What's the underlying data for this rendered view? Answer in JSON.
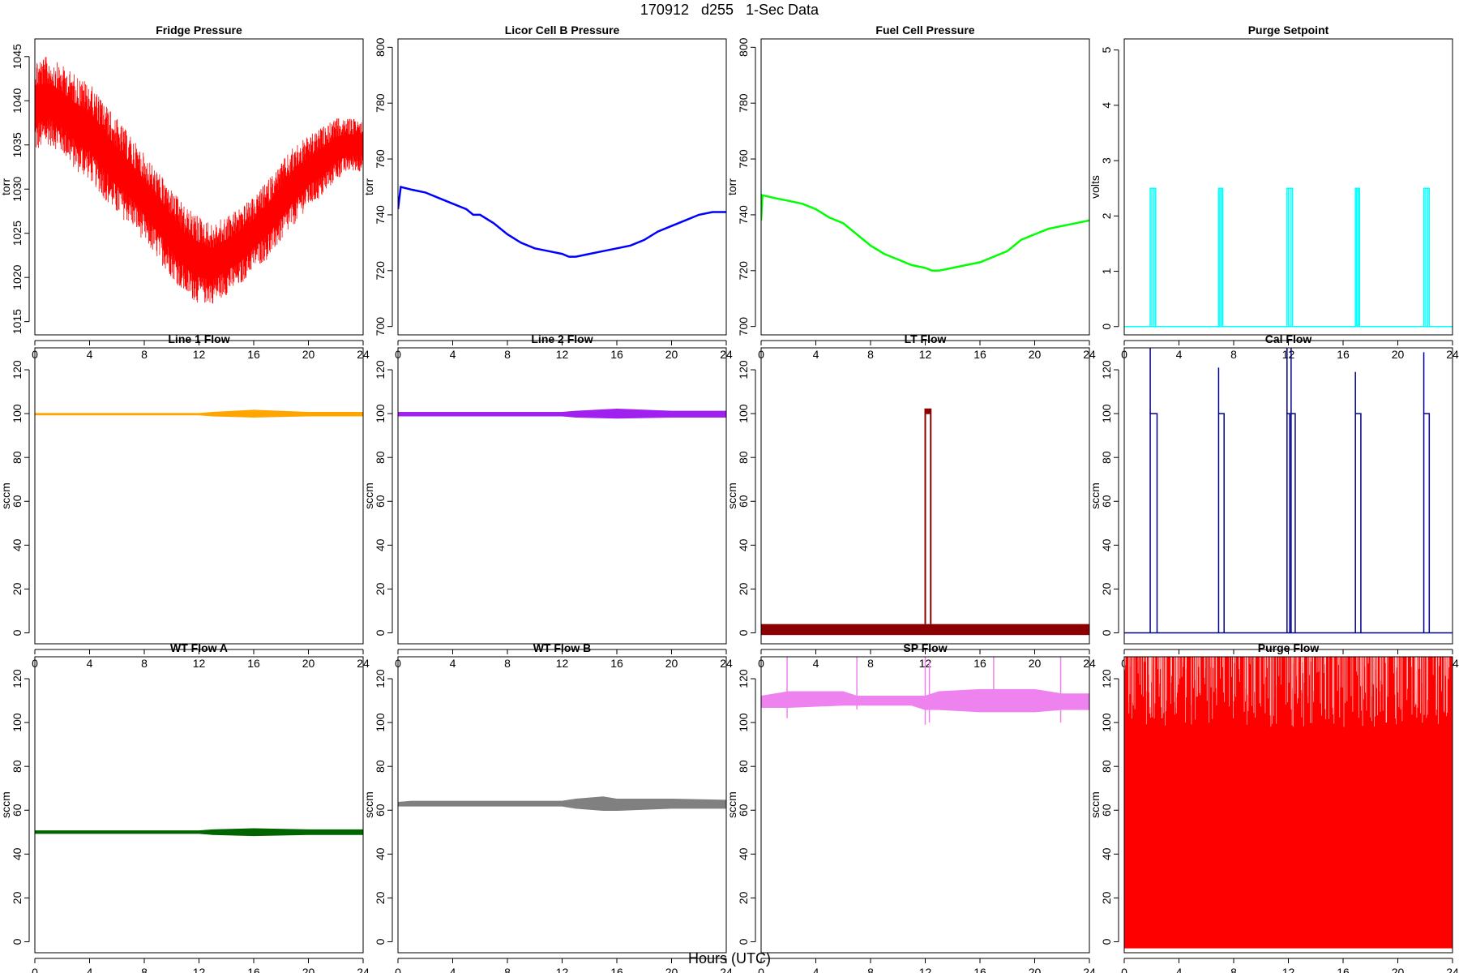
{
  "title": "170912   d255   1-Sec Data",
  "xlabel": "Hours (UTC)",
  "chart_data": [
    {
      "type": "line",
      "title": "Fridge Pressure",
      "ylabel": "torr",
      "color": "#ff0000",
      "style": "noise",
      "xlim": [
        0,
        24
      ],
      "ylim": [
        1013.5,
        1047
      ],
      "xticks": [
        0,
        4,
        8,
        12,
        16,
        20,
        24
      ],
      "yticks": [
        1015,
        1020,
        1025,
        1030,
        1035,
        1040,
        1045
      ],
      "x": [
        0,
        1,
        2,
        3,
        4,
        5,
        6,
        7,
        8,
        9,
        10,
        11,
        12,
        13,
        14,
        15,
        16,
        17,
        18,
        19,
        20,
        21,
        22,
        23,
        24
      ],
      "lower": [
        1034,
        1035,
        1034,
        1032,
        1031,
        1029,
        1027,
        1026,
        1024,
        1022,
        1020,
        1018,
        1017,
        1017,
        1018,
        1019,
        1021,
        1022,
        1024,
        1026,
        1028,
        1029,
        1031,
        1032,
        1032
      ],
      "upper": [
        1045,
        1045,
        1044,
        1043,
        1042,
        1040,
        1038,
        1036,
        1034,
        1032,
        1030,
        1028,
        1027,
        1026,
        1027,
        1028,
        1029,
        1031,
        1033,
        1035,
        1036,
        1037,
        1038,
        1038,
        1038
      ]
    },
    {
      "type": "line",
      "title": "Licor Cell B Pressure",
      "ylabel": "torr",
      "color": "#0000ff",
      "style": "line",
      "xlim": [
        0,
        24
      ],
      "ylim": [
        697,
        803
      ],
      "xticks": [
        0,
        4,
        8,
        12,
        16,
        20,
        24
      ],
      "yticks": [
        700,
        720,
        740,
        760,
        780,
        800
      ],
      "x": [
        0,
        0.2,
        1,
        2,
        3,
        4,
        5,
        5.5,
        6,
        7,
        8,
        9,
        10,
        11,
        12,
        12.5,
        13,
        14,
        15,
        16,
        17,
        18,
        19,
        20,
        21,
        22,
        23,
        24
      ],
      "y": [
        742,
        750,
        749,
        748,
        746,
        744,
        742,
        740,
        740,
        737,
        733,
        730,
        728,
        727,
        726,
        725,
        725,
        726,
        727,
        728,
        729,
        731,
        734,
        736,
        738,
        740,
        741,
        741
      ]
    },
    {
      "type": "line",
      "title": "Fuel Cell Pressure",
      "ylabel": "torr",
      "color": "#00ff00",
      "style": "line",
      "xlim": [
        0,
        24
      ],
      "ylim": [
        697,
        803
      ],
      "xticks": [
        0,
        4,
        8,
        12,
        16,
        20,
        24
      ],
      "yticks": [
        700,
        720,
        740,
        760,
        780,
        800
      ],
      "x": [
        0,
        0.1,
        1,
        2,
        3,
        4,
        5,
        6,
        7,
        8,
        9,
        10,
        11,
        12,
        12.5,
        13,
        14,
        15,
        16,
        17,
        18,
        19,
        20,
        21,
        22,
        23,
        24
      ],
      "y": [
        738,
        747,
        746,
        745,
        744,
        742,
        739,
        737,
        733,
        729,
        726,
        724,
        722,
        721,
        720,
        720,
        721,
        722,
        723,
        725,
        727,
        731,
        733,
        735,
        736,
        737,
        738
      ]
    },
    {
      "type": "line",
      "title": "Purge Setpoint",
      "ylabel": "volts",
      "color": "#00ffff",
      "style": "pulses",
      "xlim": [
        0,
        24
      ],
      "ylim": [
        -0.15,
        5.2
      ],
      "xticks": [
        0,
        4,
        8,
        12,
        16,
        20,
        24
      ],
      "yticks": [
        0,
        1,
        2,
        3,
        4,
        5
      ],
      "base": 0,
      "pulses": [
        {
          "start": 1.9,
          "end": 2.3,
          "level": 2.5
        },
        {
          "start": 6.9,
          "end": 7.2,
          "level": 2.5
        },
        {
          "start": 11.9,
          "end": 12.3,
          "level": 2.5
        },
        {
          "start": 16.9,
          "end": 17.2,
          "level": 2.5
        },
        {
          "start": 21.9,
          "end": 22.3,
          "level": 2.5
        }
      ]
    },
    {
      "type": "line",
      "title": "Line 1 Flow",
      "ylabel": "sccm",
      "color": "#ffa500",
      "style": "band",
      "xlim": [
        0,
        24
      ],
      "ylim": [
        -5,
        130
      ],
      "xticks": [
        0,
        4,
        8,
        12,
        16,
        20,
        24
      ],
      "yticks": [
        0,
        20,
        40,
        60,
        80,
        100,
        120
      ],
      "x": [
        0,
        12,
        13,
        16,
        20,
        24
      ],
      "lower": [
        99.5,
        99.5,
        99,
        98.5,
        99,
        99
      ],
      "upper": [
        100,
        100,
        100.5,
        101.5,
        100.5,
        100.5
      ]
    },
    {
      "type": "line",
      "title": "Line 2 Flow",
      "ylabel": "sccm",
      "color": "#a020f0",
      "style": "band",
      "xlim": [
        0,
        24
      ],
      "ylim": [
        -5,
        130
      ],
      "xticks": [
        0,
        4,
        8,
        12,
        16,
        20,
        24
      ],
      "yticks": [
        0,
        20,
        40,
        60,
        80,
        100,
        120
      ],
      "x": [
        0,
        12,
        13,
        16,
        20,
        24
      ],
      "lower": [
        99,
        99,
        98.5,
        98,
        98.5,
        98.5
      ],
      "upper": [
        100.5,
        100.5,
        101,
        102,
        101,
        101
      ]
    },
    {
      "type": "line",
      "title": "LT Flow",
      "ylabel": "sccm",
      "color": "#8b0000",
      "style": "pulses",
      "xlim": [
        0,
        24
      ],
      "ylim": [
        -5,
        130
      ],
      "xticks": [
        0,
        4,
        8,
        12,
        16,
        20,
        24
      ],
      "yticks": [
        0,
        20,
        40,
        60,
        80,
        100,
        120
      ],
      "base_band": [
        -1,
        4
      ],
      "pulses": [
        {
          "start": 12.0,
          "end": 12.4,
          "level": 102
        }
      ]
    },
    {
      "type": "line",
      "title": "Cal Flow",
      "ylabel": "sccm",
      "color": "#00008b",
      "style": "pulses",
      "xlim": [
        0,
        24
      ],
      "ylim": [
        -5,
        130
      ],
      "xticks": [
        0,
        4,
        8,
        12,
        16,
        20,
        24
      ],
      "yticks": [
        0,
        20,
        40,
        60,
        80,
        100,
        120
      ],
      "base": 0,
      "pulses": [
        {
          "start": 1.9,
          "end": 2.4,
          "level": 100,
          "spike": 130
        },
        {
          "start": 6.9,
          "end": 7.3,
          "level": 100,
          "spike": 121
        },
        {
          "start": 11.9,
          "end": 12.1,
          "level": 100,
          "spike": 130
        },
        {
          "start": 12.2,
          "end": 12.5,
          "level": 100,
          "spike": 130
        },
        {
          "start": 16.9,
          "end": 17.3,
          "level": 100,
          "spike": 119
        },
        {
          "start": 21.9,
          "end": 22.3,
          "level": 100,
          "spike": 128
        }
      ]
    },
    {
      "type": "line",
      "title": "WT Flow A",
      "ylabel": "sccm",
      "color": "#006400",
      "style": "band",
      "xlim": [
        0,
        24
      ],
      "ylim": [
        -5,
        130
      ],
      "xticks": [
        0,
        4,
        8,
        12,
        16,
        20,
        24
      ],
      "yticks": [
        0,
        20,
        40,
        60,
        80,
        100,
        120
      ],
      "x": [
        0,
        12,
        13,
        16,
        20,
        24
      ],
      "lower": [
        49.5,
        49.5,
        49,
        48.5,
        49,
        49
      ],
      "upper": [
        50.5,
        50.5,
        51,
        51.5,
        51,
        51
      ]
    },
    {
      "type": "line",
      "title": "WT Flow B",
      "ylabel": "sccm",
      "color": "#808080",
      "style": "band",
      "xlim": [
        0,
        24
      ],
      "ylim": [
        -5,
        130
      ],
      "xticks": [
        0,
        4,
        8,
        12,
        16,
        20,
        24
      ],
      "yticks": [
        0,
        20,
        40,
        60,
        80,
        100,
        120
      ],
      "x": [
        0,
        1,
        12,
        13,
        15,
        16,
        20,
        24
      ],
      "lower": [
        62,
        62,
        62,
        61,
        60,
        60,
        61,
        61
      ],
      "upper": [
        63.5,
        64,
        64,
        65,
        66,
        65,
        65,
        64.5
      ]
    },
    {
      "type": "line",
      "title": "SP Flow",
      "ylabel": "sccm",
      "color": "#ee82ee",
      "style": "band",
      "xlim": [
        0,
        24
      ],
      "ylim": [
        -5,
        130
      ],
      "xticks": [
        0,
        4,
        8,
        12,
        16,
        20,
        24
      ],
      "yticks": [
        0,
        20,
        40,
        60,
        80,
        100,
        120
      ],
      "x": [
        0,
        2,
        6,
        7,
        11,
        12,
        13,
        16,
        18,
        20,
        22,
        24
      ],
      "lower": [
        107,
        107,
        108,
        108,
        108,
        106,
        106,
        105,
        105,
        105,
        106,
        106
      ],
      "upper": [
        112,
        114,
        114,
        112,
        112,
        112,
        114,
        115,
        115,
        115,
        113,
        113
      ],
      "spikes": [
        {
          "x": 1.9,
          "low": 102,
          "high": 130
        },
        {
          "x": 7.0,
          "low": 106,
          "high": 130
        },
        {
          "x": 12.0,
          "low": 99,
          "high": 130
        },
        {
          "x": 12.3,
          "low": 100,
          "high": 128
        },
        {
          "x": 17.0,
          "low": 106,
          "high": 130
        },
        {
          "x": 21.9,
          "low": 100,
          "high": 130
        }
      ]
    },
    {
      "type": "line",
      "title": "Purge Flow",
      "ylabel": "sccm",
      "color": "#ff0000",
      "style": "fill",
      "xlim": [
        0,
        24
      ],
      "ylim": [
        -5,
        130
      ],
      "xticks": [
        0,
        4,
        8,
        12,
        16,
        20,
        24
      ],
      "yticks": [
        0,
        20,
        40,
        60,
        80,
        100,
        120
      ],
      "fill_range": [
        -3,
        130
      ]
    }
  ]
}
